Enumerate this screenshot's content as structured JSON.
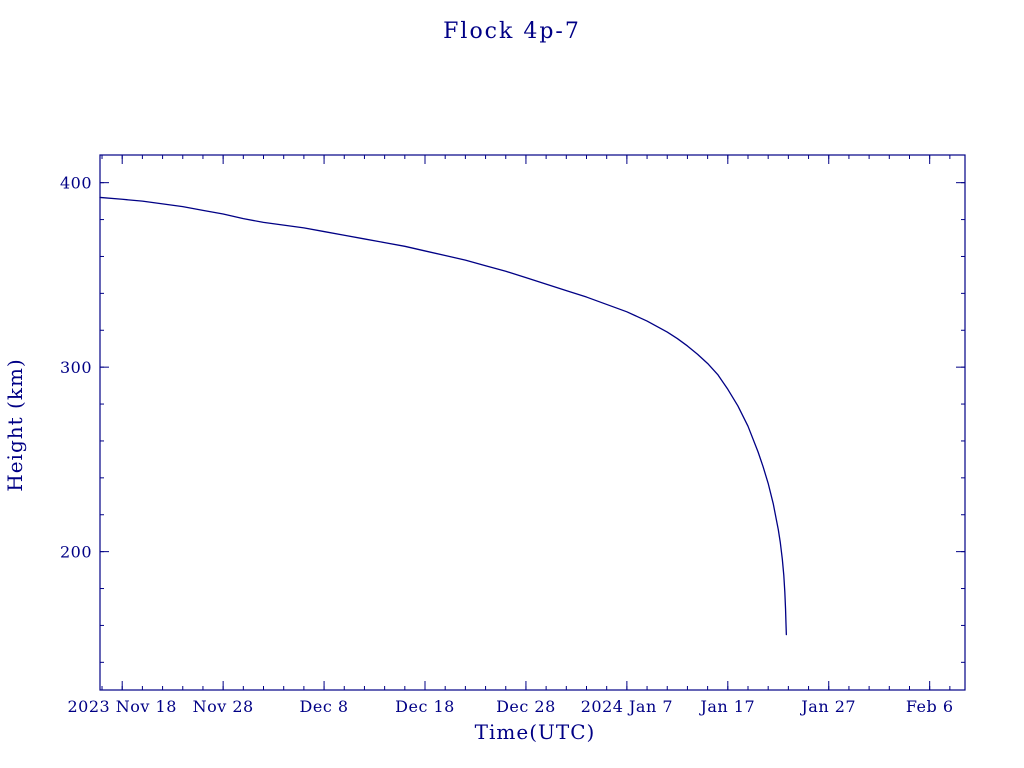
{
  "page": {
    "background": "#ffffff"
  },
  "chart_data": {
    "type": "line",
    "title": "Flock 4p-7",
    "xlabel": "Time(UTC)",
    "ylabel": "Height (km)",
    "line_color": "#000085",
    "axis_color": "#000085",
    "grid": false,
    "legend": "none",
    "x_unit": "days since 2023 Nov 18",
    "xlim": [
      -2.2,
      83.5
    ],
    "ylim": [
      125,
      415
    ],
    "x_minor_step": 2,
    "y_minor_step": 20,
    "xticks": [
      {
        "pos": 0,
        "label": "2023 Nov 18"
      },
      {
        "pos": 10,
        "label": "Nov 28"
      },
      {
        "pos": 20,
        "label": "Dec 8"
      },
      {
        "pos": 30,
        "label": "Dec 18"
      },
      {
        "pos": 40,
        "label": "Dec 28"
      },
      {
        "pos": 50,
        "label": "2024 Jan 7"
      },
      {
        "pos": 60,
        "label": "Jan 17"
      },
      {
        "pos": 70,
        "label": "Jan 27"
      },
      {
        "pos": 80,
        "label": "Feb 6"
      }
    ],
    "yticks": [
      {
        "pos": 200,
        "label": "200"
      },
      {
        "pos": 300,
        "label": "300"
      },
      {
        "pos": 400,
        "label": "400"
      }
    ],
    "series": [
      {
        "name": "height_km",
        "points": [
          [
            -2.2,
            392
          ],
          [
            0,
            391
          ],
          [
            2,
            390
          ],
          [
            4,
            388.5
          ],
          [
            6,
            387
          ],
          [
            8,
            385
          ],
          [
            10,
            383
          ],
          [
            12,
            380.5
          ],
          [
            14,
            378.5
          ],
          [
            16,
            377
          ],
          [
            18,
            375.5
          ],
          [
            20,
            373.5
          ],
          [
            22,
            371.5
          ],
          [
            24,
            369.5
          ],
          [
            26,
            367.5
          ],
          [
            28,
            365.5
          ],
          [
            30,
            363
          ],
          [
            32,
            360.5
          ],
          [
            34,
            358
          ],
          [
            36,
            355
          ],
          [
            38,
            352
          ],
          [
            40,
            348.5
          ],
          [
            42,
            345
          ],
          [
            44,
            341.5
          ],
          [
            46,
            338
          ],
          [
            48,
            334
          ],
          [
            50,
            330
          ],
          [
            51,
            327.5
          ],
          [
            52,
            325
          ],
          [
            53,
            322
          ],
          [
            54,
            319
          ],
          [
            55,
            315.5
          ],
          [
            56,
            311.5
          ],
          [
            57,
            307
          ],
          [
            58,
            302
          ],
          [
            59,
            296
          ],
          [
            60,
            288
          ],
          [
            61,
            279
          ],
          [
            62,
            268
          ],
          [
            63,
            254
          ],
          [
            63.5,
            246
          ],
          [
            64,
            237
          ],
          [
            64.5,
            226
          ],
          [
            65,
            212
          ],
          [
            65.2,
            205
          ],
          [
            65.4,
            196
          ],
          [
            65.55,
            187
          ],
          [
            65.65,
            178
          ],
          [
            65.72,
            169
          ],
          [
            65.77,
            160
          ],
          [
            65.8,
            155
          ]
        ]
      }
    ]
  }
}
